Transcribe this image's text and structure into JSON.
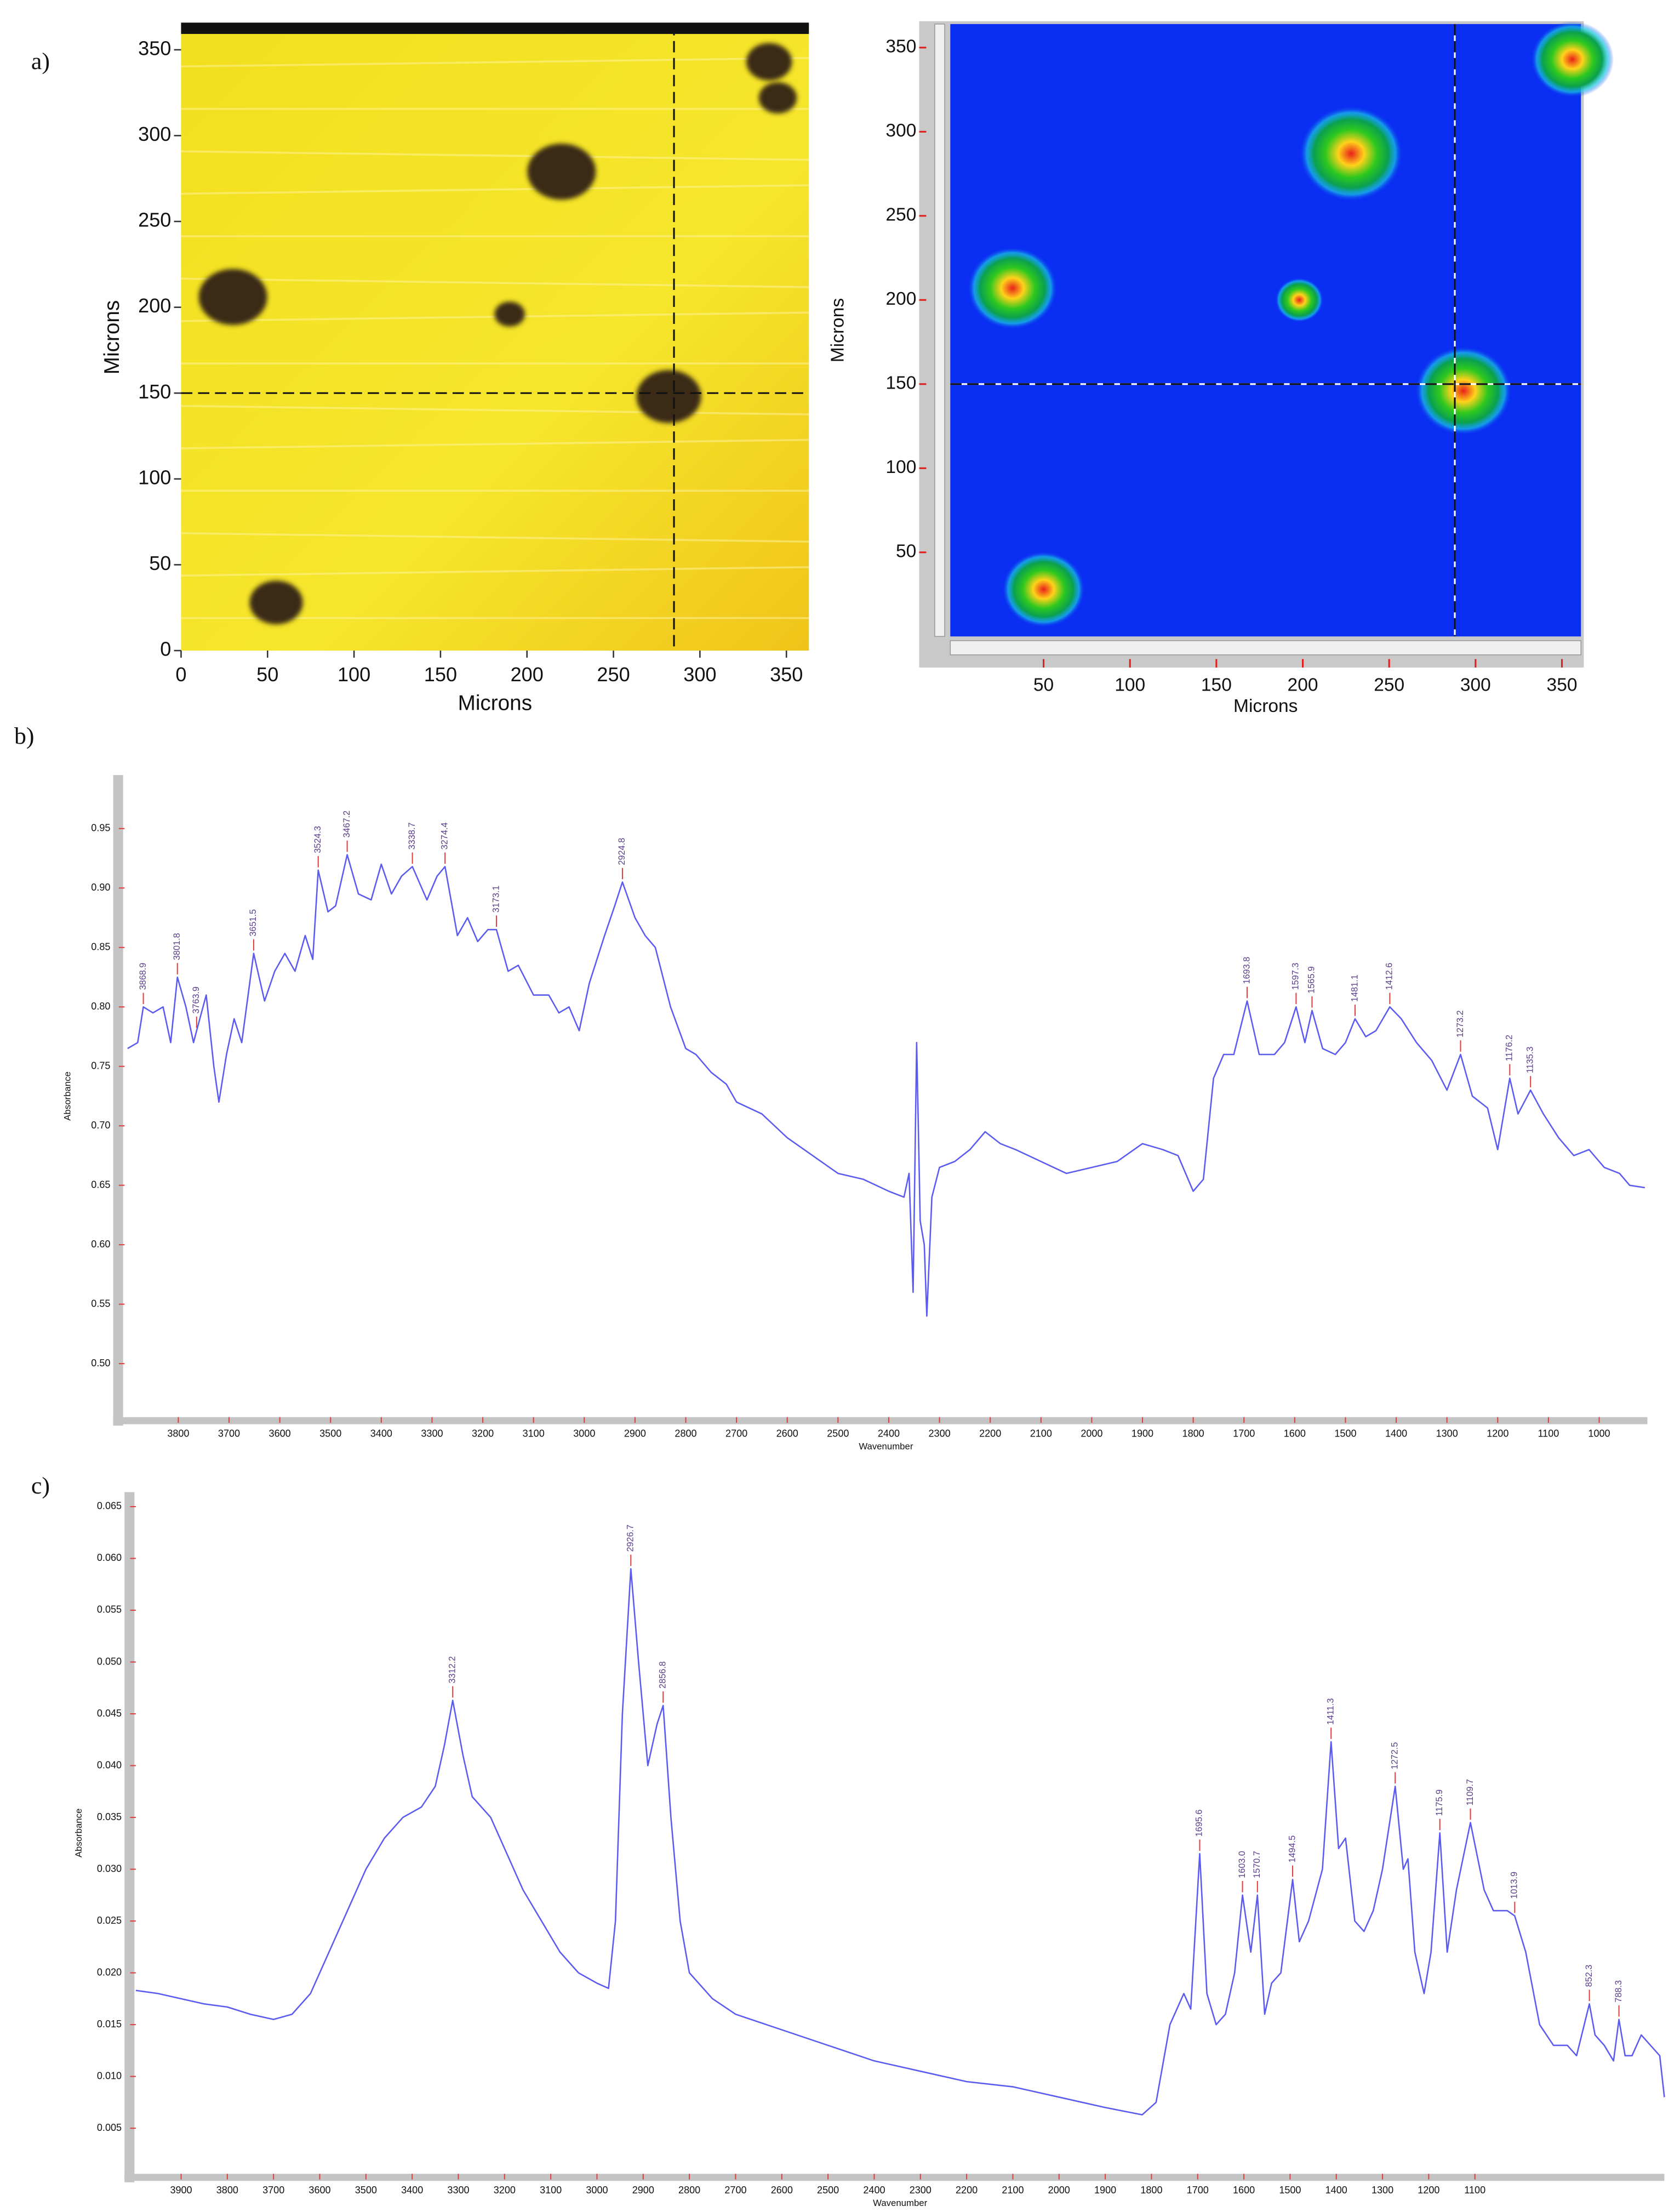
{
  "chart_data": [
    {
      "type": "image",
      "label": "a)",
      "xlabel": "Microns",
      "ylabel": "Microns",
      "xlim": [
        0,
        363
      ],
      "ylim": [
        0,
        365
      ],
      "xticks": [
        0,
        50,
        100,
        150,
        200,
        250,
        300,
        350
      ],
      "yticks": [
        0,
        50,
        100,
        150,
        200,
        250,
        300,
        350
      ],
      "crosshair_x": 285,
      "crosshair_y": 150,
      "color": "#3a2c12",
      "x": [
        340,
        345,
        220,
        30,
        190,
        282,
        55
      ],
      "y": [
        343,
        322,
        279,
        206,
        196,
        148,
        28
      ],
      "sizes": [
        12,
        10,
        18,
        18,
        8,
        17,
        14
      ]
    },
    {
      "type": "heatmap",
      "xlabel": "Microns",
      "ylabel": "Microns",
      "xlim": [
        -4,
        361
      ],
      "ylim": [
        0,
        364
      ],
      "xticks": [
        50,
        100,
        150,
        200,
        250,
        300,
        350
      ],
      "yticks": [
        50,
        100,
        150,
        200,
        250,
        300,
        350
      ],
      "crosshair_x": 288,
      "crosshair_y": 150,
      "color": "#0a2ef2",
      "x": [
        32,
        228,
        198,
        293,
        50,
        356
      ],
      "y": [
        207,
        287,
        200,
        146,
        28,
        343
      ],
      "sizes": [
        26,
        30,
        14,
        28,
        24,
        24
      ]
    },
    {
      "type": "line",
      "label": "b)",
      "xlabel": "Wavenumber",
      "ylabel": "Absorbance",
      "xlim": [
        3906,
        905
      ],
      "ylim": [
        0.455,
        0.995
      ],
      "color": "#5b5bf0",
      "peak_color": "#e04040",
      "xticks": [
        3800,
        3700,
        3600,
        3500,
        3400,
        3300,
        3200,
        3100,
        3000,
        2900,
        2800,
        2700,
        2600,
        2500,
        2400,
        2300,
        2200,
        2100,
        2000,
        1900,
        1800,
        1700,
        1600,
        1500,
        1400,
        1300,
        1200,
        1100,
        1000
      ],
      "yticks": [
        {
          "value": 0.5,
          "label": "0.50"
        },
        0.55,
        {
          "value": 0.6,
          "label": "0.60"
        },
        0.65,
        {
          "value": 0.7,
          "label": "0.70"
        },
        0.75,
        {
          "value": 0.8,
          "label": "0.80"
        },
        0.85,
        {
          "value": 0.9,
          "label": "0.90"
        },
        0.95
      ],
      "x": [
        3900,
        3880,
        3868.9,
        3850,
        3830,
        3815,
        3801.8,
        3785,
        3770,
        3763.9,
        3745,
        3730,
        3720,
        3705,
        3690,
        3675,
        3651.5,
        3630,
        3610,
        3590,
        3570,
        3550,
        3535,
        3524.3,
        3505,
        3490,
        3467.2,
        3445,
        3420,
        3400,
        3380,
        3360,
        3338.7,
        3310,
        3290,
        3274.4,
        3250,
        3230,
        3210,
        3190,
        3173.1,
        3150,
        3130,
        3100,
        3070,
        3050,
        3030,
        3010,
        2990,
        2960,
        2940,
        2924.8,
        2900,
        2880,
        2860,
        2830,
        2800,
        2780,
        2750,
        2720,
        2700,
        2650,
        2600,
        2550,
        2500,
        2450,
        2400,
        2370,
        2360,
        2352,
        2345,
        2338,
        2330,
        2325,
        2315,
        2300,
        2270,
        2240,
        2210,
        2180,
        2150,
        2100,
        2050,
        2000,
        1950,
        1900,
        1860,
        1830,
        1800,
        1780,
        1760,
        1740,
        1720,
        1693.8,
        1670,
        1640,
        1620,
        1597.3,
        1580,
        1565.9,
        1545,
        1520,
        1500,
        1481.1,
        1460,
        1440,
        1412.6,
        1390,
        1360,
        1330,
        1300,
        1273.2,
        1250,
        1220,
        1200,
        1176.2,
        1160,
        1135.3,
        1110,
        1080,
        1050,
        1020,
        990,
        960,
        940,
        910
      ],
      "values": [
        0.765,
        0.77,
        0.8,
        0.795,
        0.8,
        0.77,
        0.825,
        0.8,
        0.77,
        0.78,
        0.81,
        0.75,
        0.72,
        0.76,
        0.79,
        0.77,
        0.845,
        0.805,
        0.83,
        0.845,
        0.83,
        0.86,
        0.84,
        0.915,
        0.88,
        0.885,
        0.928,
        0.895,
        0.89,
        0.92,
        0.895,
        0.91,
        0.918,
        0.89,
        0.91,
        0.918,
        0.86,
        0.875,
        0.855,
        0.865,
        0.865,
        0.83,
        0.835,
        0.81,
        0.81,
        0.795,
        0.8,
        0.78,
        0.82,
        0.86,
        0.885,
        0.905,
        0.875,
        0.86,
        0.85,
        0.8,
        0.765,
        0.76,
        0.745,
        0.735,
        0.72,
        0.71,
        0.69,
        0.675,
        0.66,
        0.655,
        0.645,
        0.64,
        0.66,
        0.56,
        0.77,
        0.62,
        0.6,
        0.54,
        0.64,
        0.665,
        0.67,
        0.68,
        0.695,
        0.685,
        0.68,
        0.67,
        0.66,
        0.665,
        0.67,
        0.685,
        0.68,
        0.675,
        0.645,
        0.655,
        0.74,
        0.76,
        0.76,
        0.805,
        0.76,
        0.76,
        0.77,
        0.8,
        0.77,
        0.797,
        0.765,
        0.76,
        0.77,
        0.79,
        0.775,
        0.78,
        0.8,
        0.79,
        0.77,
        0.755,
        0.73,
        0.76,
        0.725,
        0.715,
        0.68,
        0.74,
        0.71,
        0.73,
        0.71,
        0.69,
        0.675,
        0.68,
        0.665,
        0.66,
        0.65,
        0.648
      ],
      "peaks": [
        3868.9,
        3801.8,
        3763.9,
        3651.5,
        3524.3,
        3467.2,
        3338.7,
        3274.4,
        3173.1,
        2924.8,
        1693.8,
        1597.3,
        1565.9,
        1481.1,
        1412.6,
        1273.2,
        1176.2,
        1135.3
      ]
    },
    {
      "type": "line",
      "label": "c)",
      "xlabel": "Wavenumber",
      "ylabel": "Absorbance",
      "xlim": [
        3998,
        690
      ],
      "ylim": [
        0.0006,
        0.0664
      ],
      "color": "#5b5bf0",
      "peak_color": "#e04040",
      "xticks": [
        3900,
        3800,
        3700,
        3600,
        3500,
        3400,
        3300,
        3200,
        3100,
        3000,
        2900,
        2800,
        2700,
        2600,
        2500,
        2400,
        2300,
        2200,
        2100,
        2000,
        1900,
        1800,
        1700,
        1600,
        1500,
        1400,
        1300,
        1200,
        1100
      ],
      "yticks": [
        0.005,
        {
          "value": 0.01,
          "label": "0.010"
        },
        0.015,
        {
          "value": 0.02,
          "label": "0.020"
        },
        0.025,
        {
          "value": 0.03,
          "label": "0.030"
        },
        0.035,
        {
          "value": 0.04,
          "label": "0.040"
        },
        0.045,
        {
          "value": 0.05,
          "label": "0.050"
        },
        0.055,
        {
          "value": 0.06,
          "label": "0.060"
        },
        0.065
      ],
      "x": [
        3998,
        3950,
        3900,
        3850,
        3800,
        3750,
        3700,
        3660,
        3620,
        3580,
        3540,
        3500,
        3460,
        3420,
        3380,
        3350,
        3330,
        3312.2,
        3290,
        3270,
        3230,
        3200,
        3160,
        3120,
        3080,
        3040,
        3000,
        2975,
        2960,
        2945,
        2926.7,
        2910,
        2890,
        2870,
        2856.8,
        2840,
        2820,
        2800,
        2750,
        2700,
        2600,
        2500,
        2400,
        2300,
        2200,
        2100,
        2000,
        1900,
        1820,
        1790,
        1760,
        1730,
        1715,
        1695.6,
        1680,
        1660,
        1640,
        1620,
        1603.0,
        1585,
        1570.7,
        1555,
        1540,
        1520,
        1494.5,
        1480,
        1460,
        1430,
        1411.3,
        1395,
        1380,
        1360,
        1340,
        1320,
        1300,
        1272.5,
        1255,
        1245,
        1230,
        1210,
        1195,
        1175.9,
        1160,
        1140,
        1109.7,
        1080,
        1060,
        1030,
        1013.9,
        990,
        960,
        930,
        900,
        880,
        852.3,
        840,
        820,
        800,
        788.3,
        775,
        760,
        740,
        720,
        700,
        690
      ],
      "values": [
        0.0183,
        0.018,
        0.0175,
        0.017,
        0.0167,
        0.016,
        0.0155,
        0.016,
        0.018,
        0.022,
        0.026,
        0.03,
        0.033,
        0.035,
        0.036,
        0.038,
        0.042,
        0.0463,
        0.041,
        0.037,
        0.035,
        0.032,
        0.028,
        0.025,
        0.022,
        0.02,
        0.019,
        0.0185,
        0.025,
        0.045,
        0.059,
        0.05,
        0.04,
        0.044,
        0.0458,
        0.035,
        0.025,
        0.02,
        0.0175,
        0.016,
        0.0145,
        0.013,
        0.0115,
        0.0105,
        0.0095,
        0.009,
        0.008,
        0.007,
        0.0063,
        0.0075,
        0.015,
        0.018,
        0.0165,
        0.0315,
        0.018,
        0.015,
        0.016,
        0.02,
        0.0275,
        0.022,
        0.0275,
        0.016,
        0.019,
        0.02,
        0.029,
        0.023,
        0.025,
        0.03,
        0.0423,
        0.032,
        0.033,
        0.025,
        0.024,
        0.026,
        0.03,
        0.038,
        0.03,
        0.031,
        0.022,
        0.018,
        0.022,
        0.0335,
        0.022,
        0.028,
        0.0345,
        0.028,
        0.026,
        0.026,
        0.0255,
        0.022,
        0.015,
        0.013,
        0.013,
        0.012,
        0.017,
        0.014,
        0.013,
        0.0115,
        0.0155,
        0.012,
        0.012,
        0.014,
        0.013,
        0.012,
        0.008
      ],
      "peaks": [
        3312.2,
        2926.7,
        2856.8,
        1695.6,
        {
          "value": 1603.0,
          "label": "1603.0"
        },
        1570.7,
        1494.5,
        1411.3,
        1272.5,
        1175.9,
        1109.7,
        1013.9,
        852.3,
        788.3
      ]
    }
  ]
}
